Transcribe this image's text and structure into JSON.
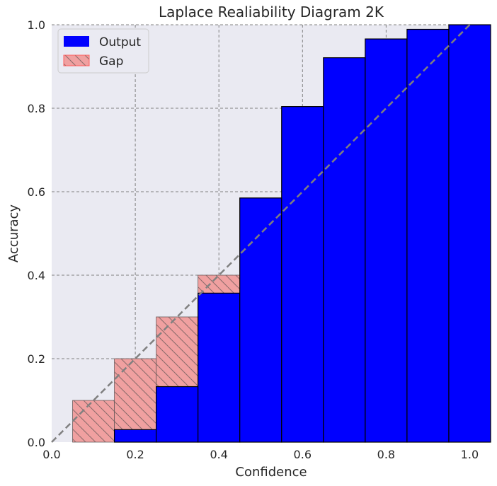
{
  "chart_data": {
    "type": "bar",
    "title": "Laplace Realiability Diagram 2K",
    "xlabel": "Confidence",
    "ylabel": "Accuracy",
    "xlim": [
      0.0,
      1.05
    ],
    "ylim": [
      0.0,
      1.0
    ],
    "x_ticks": [
      0.0,
      0.2,
      0.4,
      0.6,
      0.8,
      1.0
    ],
    "x_tick_labels": [
      "0.0",
      "0.2",
      "0.4",
      "0.6",
      "0.8",
      "1.0"
    ],
    "y_ticks": [
      0.0,
      0.2,
      0.4,
      0.6,
      0.8,
      1.0
    ],
    "y_tick_labels": [
      "0.0",
      "0.2",
      "0.4",
      "0.6",
      "0.8",
      "1.0"
    ],
    "bin_width": 0.1,
    "bin_centers": [
      0.1,
      0.2,
      0.3,
      0.4,
      0.5,
      0.6,
      0.7,
      0.8,
      0.9,
      1.0
    ],
    "series": [
      {
        "name": "Output",
        "values": [
          0.0,
          0.03,
          0.133,
          0.357,
          0.585,
          0.804,
          0.921,
          0.966,
          0.989,
          1.0
        ]
      },
      {
        "name": "Gap",
        "bottoms": [
          0.0,
          0.03,
          0.133,
          0.357,
          0.4,
          0.6,
          0.7,
          0.8,
          0.9,
          1.0
        ],
        "tops": [
          0.1,
          0.2,
          0.3,
          0.4,
          0.585,
          0.804,
          0.921,
          0.966,
          0.989,
          1.0
        ]
      }
    ],
    "diagonal": {
      "from": [
        0.0,
        0.0
      ],
      "to": [
        1.0,
        1.0
      ],
      "style": "dashed"
    },
    "grid": true,
    "legend": "top-left",
    "colors": {
      "output": "#0000ff",
      "gap": "#f0a0a0",
      "gap_edge": "#ff0000",
      "background": "#eaeaf2",
      "diagonal": "#808080",
      "grid": "#808080"
    }
  }
}
